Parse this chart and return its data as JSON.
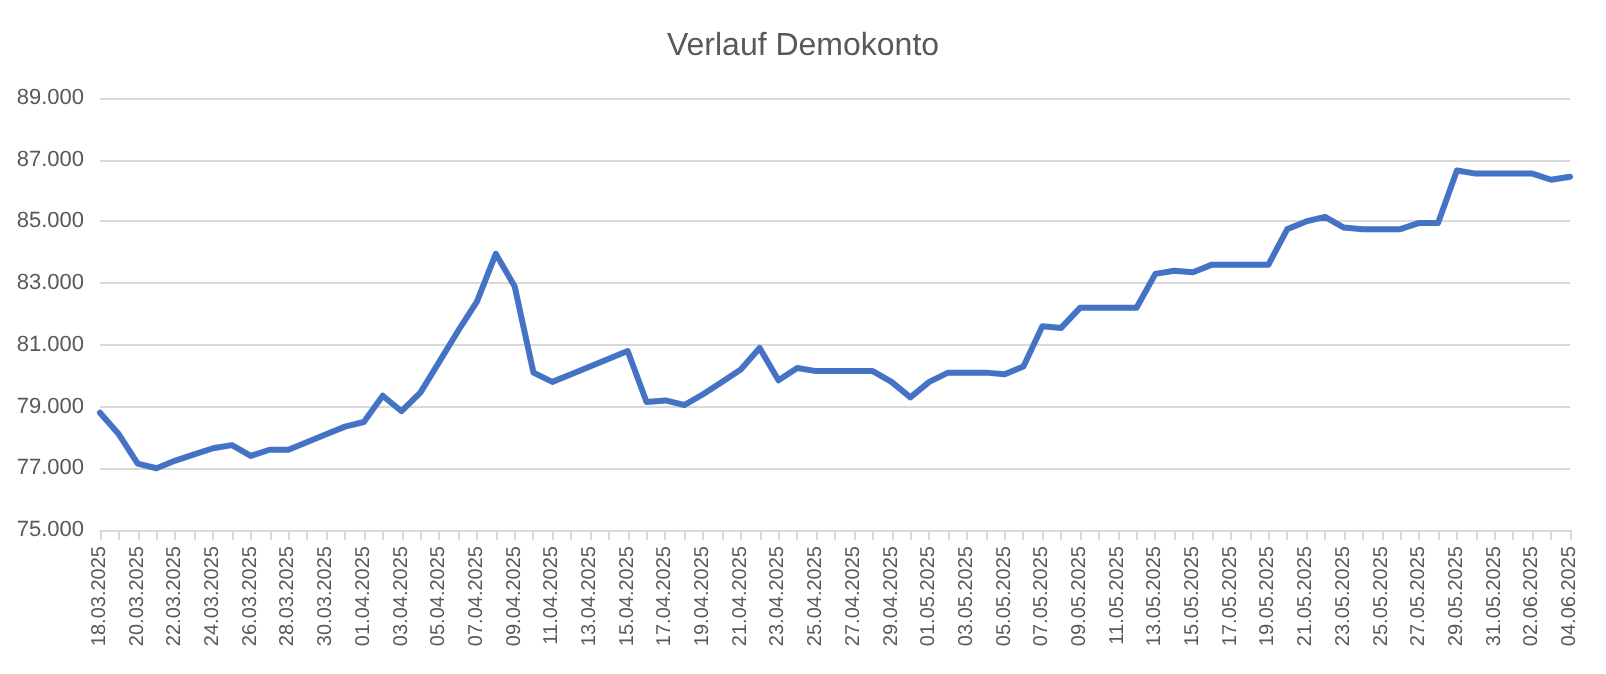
{
  "chart_data": {
    "type": "line",
    "title": "Verlauf Demokonto",
    "categories": [
      "18.03.2025",
      null,
      "20.03.2025",
      null,
      "22.03.2025",
      null,
      "24.03.2025",
      null,
      "26.03.2025",
      null,
      "28.03.2025",
      null,
      "30.03.2025",
      null,
      "01.04.2025",
      null,
      "03.04.2025",
      null,
      "05.04.2025",
      null,
      "07.04.2025",
      null,
      "09.04.2025",
      null,
      "11.04.2025",
      null,
      "13.04.2025",
      null,
      "15.04.2025",
      null,
      "17.04.2025",
      null,
      "19.04.2025",
      null,
      "21.04.2025",
      null,
      "23.04.2025",
      null,
      "25.04.2025",
      null,
      "27.04.2025",
      null,
      "29.04.2025",
      null,
      "01.05.2025",
      null,
      "03.05.2025",
      null,
      "05.05.2025",
      null,
      "07.05.2025",
      null,
      "09.05.2025",
      null,
      "11.05.2025",
      null,
      "13.05.2025",
      null,
      "15.05.2025",
      null,
      "17.05.2025",
      null,
      "19.05.2025",
      null,
      "21.05.2025",
      null,
      "23.05.2025",
      null,
      "25.05.2025",
      null,
      "27.05.2025",
      null,
      "29.05.2025",
      null,
      "31.05.2025",
      null,
      "02.06.2025",
      null,
      "04.06.2025"
    ],
    "series": [
      {
        "color": "#4472c4",
        "values": [
          78800,
          78100,
          77150,
          77000,
          77250,
          77450,
          77650,
          77750,
          77400,
          77600,
          77600,
          77850,
          78100,
          78350,
          78500,
          79350,
          78850,
          79450,
          80450,
          81450,
          82400,
          83950,
          82900,
          80100,
          79800,
          80050,
          80300,
          80550,
          80800,
          79150,
          79200,
          79050,
          79400,
          79800,
          80200,
          80900,
          79850,
          80250,
          80150,
          80150,
          80150,
          80150,
          79800,
          79300,
          79800,
          80100,
          80100,
          80100,
          80050,
          80300,
          81600,
          81550,
          82200,
          82200,
          82200,
          82200,
          83300,
          83400,
          83350,
          83600,
          83600,
          83600,
          83600,
          84750,
          85000,
          85150,
          84800,
          84750,
          84750,
          84750,
          84950,
          84950,
          86650,
          86550,
          86550,
          86550,
          86550,
          86350,
          86450
        ]
      }
    ],
    "ylim": [
      75000,
      89000
    ],
    "yticks": [
      {
        "value": 75000,
        "label": "75.000"
      },
      {
        "value": 77000,
        "label": "77.000"
      },
      {
        "value": 79000,
        "label": "79.000"
      },
      {
        "value": 81000,
        "label": "81.000"
      },
      {
        "value": 83000,
        "label": "83.000"
      },
      {
        "value": 85000,
        "label": "85.000"
      },
      {
        "value": 87000,
        "label": "87.000"
      },
      {
        "value": 89000,
        "label": "89.000"
      }
    ],
    "grid": "y",
    "marker": "none",
    "line_style": "solid"
  }
}
